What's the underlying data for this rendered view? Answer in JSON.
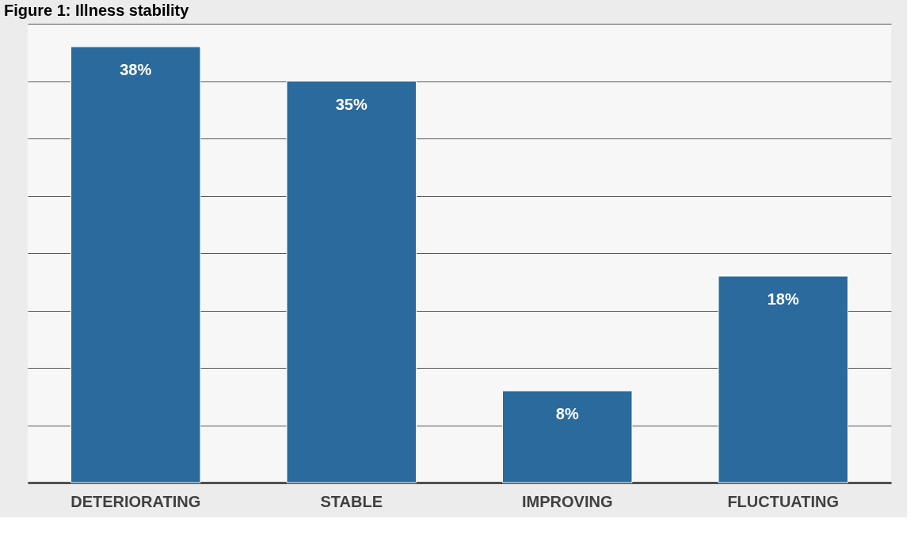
{
  "chart_data": {
    "type": "bar",
    "title": "Figure 1: Illness stability",
    "categories": [
      "DETERIORATING",
      "STABLE",
      "IMPROVING",
      "FLUCTUATING"
    ],
    "values": [
      38,
      35,
      8,
      18
    ],
    "color": "#2a6a9c",
    "ylim": [
      0,
      40
    ],
    "yticks": [
      {
        "value": 0,
        "label": null
      },
      {
        "value": 5,
        "label": null
      },
      {
        "value": 10,
        "label": null
      },
      {
        "value": 15,
        "label": null
      },
      {
        "value": 20,
        "label": null
      },
      {
        "value": 25,
        "label": null
      },
      {
        "value": 30,
        "label": null
      },
      {
        "value": 35,
        "label": null
      },
      {
        "value": 40,
        "label": null
      }
    ],
    "value_labels": [
      "38%",
      "35%",
      "8%",
      "18%"
    ],
    "grid": "y",
    "tick_labels": "x"
  }
}
